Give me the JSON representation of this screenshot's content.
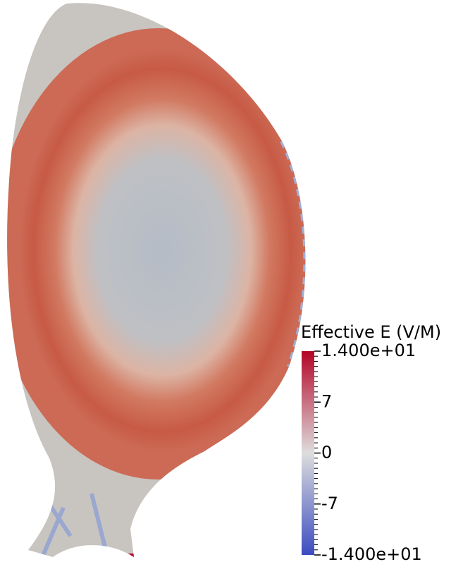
{
  "chart_data": {
    "type": "field",
    "title": "Effective E (V/M)",
    "ylim": [
      -14,
      14
    ],
    "yticks": [
      {
        "value": -14,
        "label": "-1.400e+01"
      },
      -7,
      0,
      7,
      {
        "value": 14,
        "label": "1.400e+01"
      }
    ],
    "colormap": [
      "#3b4cc0",
      "#dddddd",
      "#b40426"
    ]
  }
}
